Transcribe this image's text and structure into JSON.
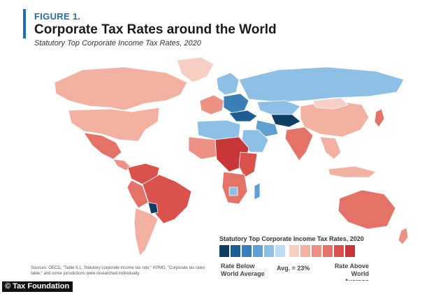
{
  "header": {
    "figure_label": "FIGURE 1.",
    "title": "Corporate Tax Rates around the World",
    "subtitle": "Statutory Top Corporate Income Tax Rates, 2020"
  },
  "legend": {
    "title": "Statutory Top Corporate Income Tax Rates, 2020",
    "below_line1": "Rate Below",
    "below_line2": "World Average",
    "avg": "Avg. = 23%",
    "above_line1": "Rate Above",
    "above_line2": "World Average",
    "colors": [
      "#0e3d66",
      "#1d5d94",
      "#3b7fb8",
      "#5f9fd2",
      "#8ec0e6",
      "#bcdcf3",
      "#f7cfc4",
      "#f3b1a2",
      "#ec9183",
      "#e47266",
      "#d9534c",
      "#c8363a"
    ]
  },
  "sources": "Sources: OECD, \"Table II.1. Statutory corporate income tax rate;\" KPMG, \"Corporate tax rates table;\" and some jurisdictions were researched individually.",
  "credit": "© Tax Foundation",
  "map_colors": {
    "dark_blue": "#0e3d66",
    "mid_blue": "#3b7fb8",
    "light_blue": "#8ec0e6",
    "pale_blue": "#bcdcf3",
    "pale_red": "#f3b1a2",
    "mid_red": "#e47266",
    "strong_red": "#d9534c",
    "deep_red": "#c8363a"
  }
}
